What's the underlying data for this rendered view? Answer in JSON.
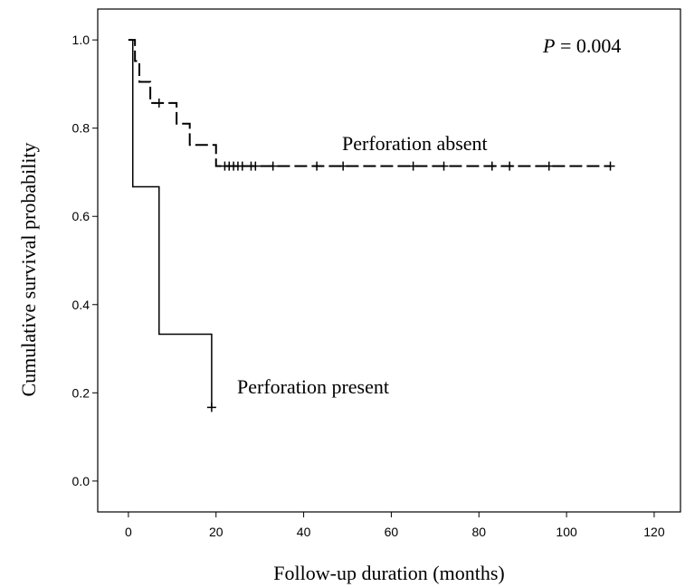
{
  "chart_data": {
    "type": "line",
    "title": "",
    "xlabel": "Follow-up duration (months)",
    "ylabel": "Cumulative survival probability",
    "xlim": [
      -7,
      126
    ],
    "ylim": [
      -0.07,
      1.07
    ],
    "xticks": [
      0,
      20,
      40,
      60,
      80,
      100,
      120
    ],
    "xtick_labels": [
      "0",
      "20",
      "40",
      "60",
      "80",
      "100",
      "120"
    ],
    "yticks": [
      0.0,
      0.2,
      0.4,
      0.6,
      0.8,
      1.0
    ],
    "ytick_labels": [
      "0.0",
      "0.2",
      "0.4",
      "0.6",
      "0.8",
      "1.0"
    ],
    "grid": false,
    "legend": "none",
    "p_value": {
      "label": "P",
      "text": " = 0.004"
    },
    "series": [
      {
        "name": "Perforation absent",
        "style": "dashed",
        "step": [
          [
            0,
            1.0
          ],
          [
            1.5,
            0.952
          ],
          [
            2.5,
            0.905
          ],
          [
            5,
            0.857
          ],
          [
            11,
            0.81
          ],
          [
            14,
            0.762
          ],
          [
            20,
            0.714
          ],
          [
            110,
            0.714
          ]
        ],
        "censored": [
          [
            7,
            0.857
          ],
          [
            22,
            0.714
          ],
          [
            23,
            0.714
          ],
          [
            24,
            0.714
          ],
          [
            25,
            0.714
          ],
          [
            26,
            0.714
          ],
          [
            28,
            0.714
          ],
          [
            29,
            0.714
          ],
          [
            33,
            0.714
          ],
          [
            43,
            0.714
          ],
          [
            49,
            0.714
          ],
          [
            65,
            0.714
          ],
          [
            72,
            0.714
          ],
          [
            83,
            0.714
          ],
          [
            87,
            0.714
          ],
          [
            96,
            0.714
          ],
          [
            110,
            0.714
          ]
        ]
      },
      {
        "name": "Perforation present",
        "style": "solid",
        "step": [
          [
            0,
            1.0
          ],
          [
            1,
            0.667
          ],
          [
            7,
            0.333
          ],
          [
            19,
            0.167
          ]
        ],
        "censored": [
          [
            19,
            0.167
          ]
        ]
      }
    ]
  }
}
